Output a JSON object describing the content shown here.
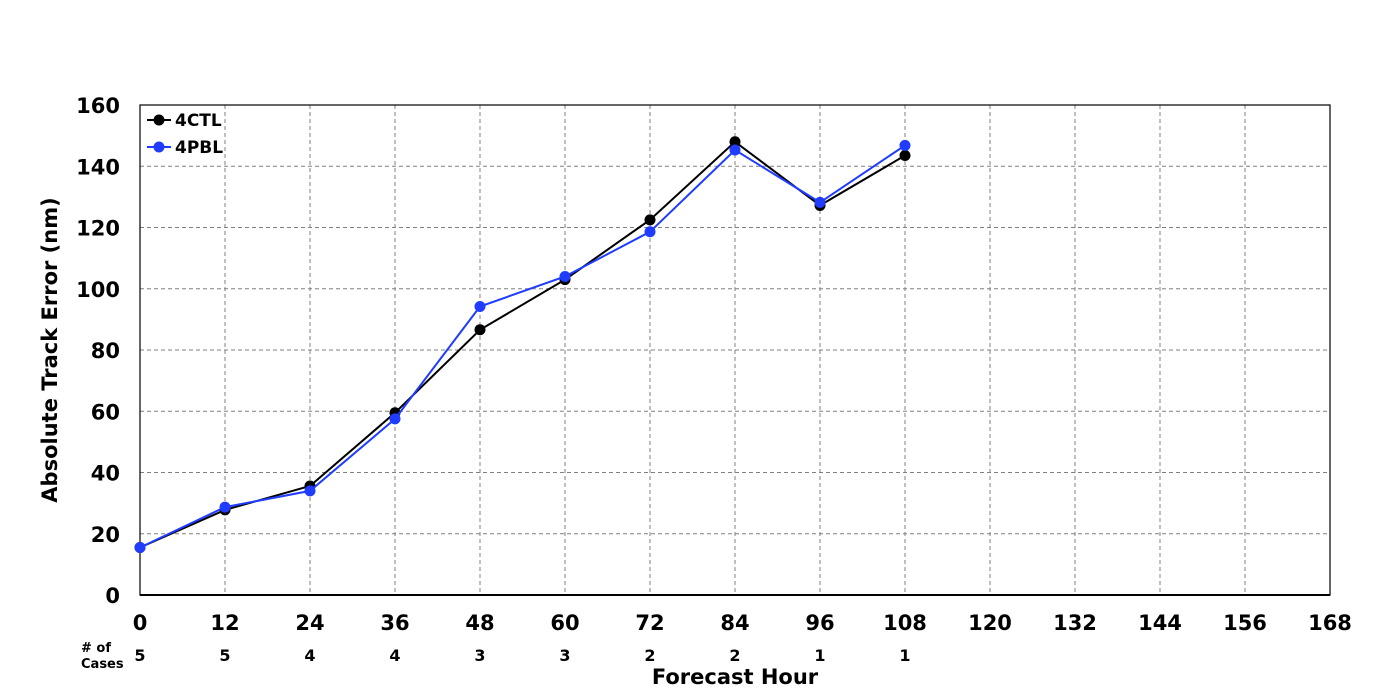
{
  "chart_data": {
    "type": "line",
    "title": "",
    "xlabel": "Forecast Hour",
    "ylabel": "Absolute Track Error (nm)",
    "xlim": [
      0,
      168
    ],
    "ylim": [
      0,
      160
    ],
    "xticks": [
      0,
      12,
      24,
      36,
      48,
      60,
      72,
      84,
      96,
      108,
      120,
      132,
      144,
      156,
      168
    ],
    "yticks": [
      0,
      20,
      40,
      60,
      80,
      100,
      120,
      140,
      160
    ],
    "grid": true,
    "legend_position": "top-left",
    "x": [
      0,
      12,
      24,
      36,
      48,
      60,
      72,
      84,
      96,
      108
    ],
    "series": [
      {
        "name": "4CTL",
        "color": "#000000",
        "values": [
          15.5,
          27.8,
          35.6,
          59.5,
          86.6,
          103,
          122.5,
          148,
          127.2,
          143.5
        ]
      },
      {
        "name": "4PBL",
        "color": "#1f3cff",
        "values": [
          15.5,
          28.7,
          34,
          57.5,
          94.2,
          104,
          118.6,
          145.3,
          128.2,
          146.8
        ]
      }
    ],
    "cases_label": [
      "# of",
      "Cases"
    ],
    "cases": [
      5,
      5,
      4,
      4,
      3,
      3,
      2,
      2,
      1,
      1
    ]
  }
}
